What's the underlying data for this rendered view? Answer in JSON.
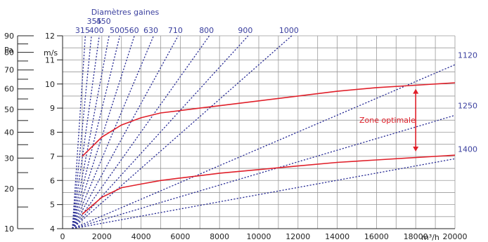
{
  "chart_data": {
    "type": "line",
    "title": "Diamètres gaines",
    "x_axis": {
      "unit": "m³/h",
      "range": [
        0,
        20000
      ],
      "ticks": [
        "0",
        "2000",
        "4000",
        "6000",
        "8000",
        "10000",
        "12000",
        "14000",
        "16000",
        "18000",
        "20000"
      ]
    },
    "y_axis_pressure": {
      "unit": "Pa",
      "range": [
        10,
        90
      ],
      "ticks": [
        "10",
        "20",
        "30",
        "40",
        "50",
        "60",
        "70",
        "80",
        "90"
      ],
      "minor_ticks": [
        "15",
        "25",
        "35",
        "45",
        "55",
        "65",
        "75",
        "85"
      ]
    },
    "y_axis_speed": {
      "unit": "m/s",
      "range": [
        4,
        12
      ],
      "ticks": [
        "4",
        "5",
        "6",
        "7",
        "8",
        "9",
        "10",
        "11",
        "12"
      ]
    },
    "grid": true,
    "diameter_lines": [
      {
        "label": "315",
        "top_flow": 1160
      },
      {
        "label": "355",
        "top_flow": 1470
      },
      {
        "label": "400",
        "top_flow": 1870
      },
      {
        "label": "450",
        "top_flow": 2370
      },
      {
        "label": "500",
        "top_flow": 2920
      },
      {
        "label": "560",
        "top_flow": 3660
      },
      {
        "label": "630",
        "top_flow": 4640
      },
      {
        "label": "710",
        "top_flow": 5890
      },
      {
        "label": "800",
        "top_flow": 7480
      },
      {
        "label": "900",
        "top_flow": 9460
      },
      {
        "label": "1000",
        "top_flow": 11680
      },
      {
        "label": "1120",
        "right_speed": 10.8
      },
      {
        "label": "1250",
        "right_speed": 8.7
      },
      {
        "label": "1400",
        "right_speed": 6.9
      }
    ],
    "series": [
      {
        "values": [
          [
            1000,
            7.0
          ],
          [
            2000,
            7.8
          ],
          [
            3000,
            8.3
          ],
          [
            4000,
            8.6
          ],
          [
            5000,
            8.8
          ],
          [
            6000,
            8.9
          ],
          [
            7000,
            9.0
          ],
          [
            8000,
            9.1
          ],
          [
            10000,
            9.3
          ],
          [
            12000,
            9.5
          ],
          [
            14000,
            9.7
          ],
          [
            16000,
            9.85
          ],
          [
            18000,
            9.95
          ],
          [
            20000,
            10.05
          ]
        ],
        "color": "#e0202a"
      },
      {
        "values": [
          [
            1000,
            4.6
          ],
          [
            2000,
            5.3
          ],
          [
            3000,
            5.7
          ],
          [
            4000,
            5.85
          ],
          [
            5000,
            6.0
          ],
          [
            6000,
            6.1
          ],
          [
            7000,
            6.2
          ],
          [
            8000,
            6.3
          ],
          [
            10000,
            6.45
          ],
          [
            12000,
            6.6
          ],
          [
            14000,
            6.75
          ],
          [
            16000,
            6.85
          ],
          [
            18000,
            6.95
          ],
          [
            20000,
            7.05
          ]
        ],
        "color": "#e0202a"
      }
    ],
    "annotation": {
      "label": "Zone optimale",
      "x": 18000,
      "y_range": [
        7.2,
        9.8
      ],
      "color": "#e0202a"
    }
  },
  "colors": {
    "curve": "#e0202a",
    "duct": "#2b2f96",
    "grid": "#9a9a9a",
    "blue_text": "#3a3f9e"
  }
}
